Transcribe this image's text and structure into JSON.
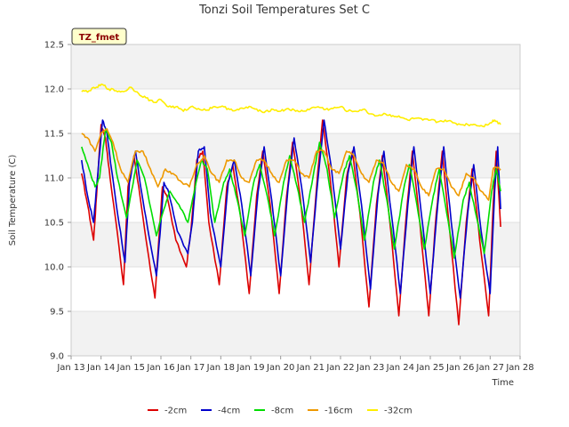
{
  "chart_data": {
    "type": "line",
    "title": "Tonzi Soil Temperatures Set C",
    "xlabel": "Time",
    "ylabel": "Soil Temperature (C)",
    "ylim": [
      9.0,
      12.5
    ],
    "xlim": [
      13,
      28
    ],
    "y_ticks": [
      "9.0",
      "9.5",
      "10.0",
      "10.5",
      "11.0",
      "11.5",
      "12.0",
      "12.5"
    ],
    "x_ticks": [
      "Jan 13",
      "Jan 14",
      "Jan 15",
      "Jan 16",
      "Jan 17",
      "Jan 18",
      "Jan 19",
      "Jan 20",
      "Jan 21",
      "Jan 22",
      "Jan 23",
      "Jan 24",
      "Jan 25",
      "Jan 26",
      "Jan 27",
      "Jan 28"
    ],
    "annotation": "TZ_fmet",
    "grid": true,
    "legend_position": "bottom",
    "series": [
      {
        "name": "-2cm",
        "color": "#dd0000",
        "x": [
          13.35,
          13.55,
          13.75,
          13.85,
          14.0,
          14.15,
          14.3,
          14.5,
          14.75,
          14.9,
          15.1,
          15.3,
          15.55,
          15.8,
          15.95,
          16.05,
          16.2,
          16.5,
          16.85,
          17.0,
          17.2,
          17.4,
          17.6,
          17.95,
          18.2,
          18.4,
          18.65,
          18.95,
          19.2,
          19.4,
          19.65,
          19.95,
          20.2,
          20.4,
          20.65,
          20.95,
          21.2,
          21.4,
          21.65,
          21.95,
          22.2,
          22.4,
          22.65,
          22.95,
          23.2,
          23.4,
          23.65,
          23.95,
          24.2,
          24.4,
          24.65,
          24.95,
          25.2,
          25.4,
          25.65,
          25.95,
          26.2,
          26.4,
          26.65,
          26.95,
          27.1,
          27.2,
          27.35
        ],
        "values": [
          11.05,
          10.7,
          10.3,
          10.8,
          11.6,
          11.45,
          11.0,
          10.5,
          9.8,
          10.9,
          11.25,
          10.8,
          10.2,
          9.65,
          10.4,
          10.9,
          10.8,
          10.3,
          10.0,
          10.4,
          11.2,
          11.3,
          10.5,
          9.8,
          10.9,
          11.15,
          10.6,
          9.7,
          10.8,
          11.3,
          10.7,
          9.7,
          10.8,
          11.4,
          10.8,
          9.8,
          10.9,
          11.65,
          11.0,
          10.0,
          11.0,
          11.3,
          10.6,
          9.55,
          10.7,
          11.25,
          10.5,
          9.45,
          10.6,
          11.3,
          10.5,
          9.45,
          10.6,
          11.3,
          10.4,
          9.35,
          10.5,
          11.1,
          10.3,
          9.45,
          10.7,
          11.3,
          10.45
        ]
      },
      {
        "name": "-4cm",
        "color": "#0000cc",
        "x": [
          13.35,
          13.55,
          13.75,
          13.85,
          14.05,
          14.2,
          14.35,
          14.55,
          14.8,
          14.95,
          15.15,
          15.35,
          15.6,
          15.85,
          16.0,
          16.1,
          16.25,
          16.55,
          16.9,
          17.05,
          17.25,
          17.45,
          17.65,
          18.0,
          18.25,
          18.45,
          18.7,
          19.0,
          19.25,
          19.45,
          19.7,
          20.0,
          20.25,
          20.45,
          20.7,
          21.0,
          21.25,
          21.45,
          21.7,
          22.0,
          22.25,
          22.45,
          22.7,
          23.0,
          23.25,
          23.45,
          23.7,
          24.0,
          24.25,
          24.45,
          24.7,
          25.0,
          25.25,
          25.45,
          25.7,
          26.0,
          26.25,
          26.45,
          26.7,
          27.0,
          27.15,
          27.25,
          27.35
        ],
        "values": [
          11.2,
          10.8,
          10.5,
          10.9,
          11.65,
          11.5,
          11.1,
          10.6,
          10.05,
          10.95,
          11.3,
          10.85,
          10.35,
          9.9,
          10.5,
          10.95,
          10.85,
          10.4,
          10.15,
          10.5,
          11.3,
          11.35,
          10.6,
          10.0,
          10.95,
          11.2,
          10.7,
          9.9,
          10.85,
          11.35,
          10.75,
          9.9,
          10.9,
          11.45,
          10.9,
          10.05,
          11.0,
          11.65,
          11.1,
          10.2,
          11.05,
          11.35,
          10.7,
          9.75,
          10.8,
          11.3,
          10.6,
          9.7,
          10.7,
          11.35,
          10.6,
          9.7,
          10.7,
          11.35,
          10.5,
          9.65,
          10.6,
          11.15,
          10.4,
          9.7,
          10.85,
          11.35,
          10.65
        ]
      },
      {
        "name": "-8cm",
        "color": "#00dd00",
        "x": [
          13.35,
          13.6,
          13.8,
          13.95,
          14.15,
          14.35,
          14.55,
          14.85,
          15.05,
          15.2,
          15.45,
          15.85,
          16.1,
          16.3,
          16.6,
          16.9,
          17.05,
          17.35,
          17.55,
          17.8,
          18.1,
          18.3,
          18.55,
          18.8,
          19.1,
          19.3,
          19.55,
          19.8,
          20.1,
          20.3,
          20.55,
          20.8,
          21.1,
          21.3,
          21.55,
          21.8,
          22.1,
          22.3,
          22.55,
          22.8,
          23.1,
          23.3,
          23.55,
          23.8,
          24.1,
          24.3,
          24.55,
          24.8,
          25.1,
          25.3,
          25.55,
          25.8,
          26.1,
          26.3,
          26.55,
          26.8,
          27.05,
          27.2,
          27.35
        ],
        "values": [
          11.35,
          11.1,
          10.9,
          11.0,
          11.55,
          11.4,
          11.0,
          10.55,
          10.9,
          11.2,
          11.0,
          10.35,
          10.65,
          10.85,
          10.7,
          10.5,
          10.75,
          11.2,
          11.1,
          10.5,
          10.95,
          11.1,
          10.75,
          10.35,
          10.95,
          11.15,
          10.8,
          10.35,
          10.95,
          11.25,
          10.9,
          10.5,
          11.05,
          11.4,
          11.1,
          10.55,
          11.05,
          11.25,
          10.85,
          10.3,
          10.95,
          11.2,
          10.75,
          10.2,
          10.85,
          11.15,
          10.7,
          10.2,
          10.8,
          11.1,
          10.6,
          10.1,
          10.75,
          10.95,
          10.55,
          10.15,
          10.85,
          11.1,
          10.85
        ]
      },
      {
        "name": "-16cm",
        "color": "#ee9900",
        "x": [
          13.35,
          13.55,
          13.8,
          14.0,
          14.2,
          14.4,
          14.65,
          14.9,
          15.15,
          15.4,
          15.65,
          15.9,
          16.15,
          16.4,
          16.7,
          16.95,
          17.2,
          17.45,
          17.7,
          17.95,
          18.2,
          18.45,
          18.7,
          18.95,
          19.2,
          19.45,
          19.7,
          19.95,
          20.2,
          20.45,
          20.7,
          20.95,
          21.2,
          21.45,
          21.7,
          21.95,
          22.2,
          22.45,
          22.7,
          22.95,
          23.2,
          23.45,
          23.7,
          23.95,
          24.2,
          24.45,
          24.7,
          24.95,
          25.2,
          25.45,
          25.7,
          25.95,
          26.2,
          26.45,
          26.7,
          26.95,
          27.1,
          27.2,
          27.35
        ],
        "values": [
          11.5,
          11.45,
          11.3,
          11.5,
          11.55,
          11.4,
          11.1,
          10.95,
          11.3,
          11.3,
          11.1,
          10.9,
          11.1,
          11.05,
          10.95,
          10.9,
          11.15,
          11.25,
          11.05,
          10.95,
          11.2,
          11.2,
          11.0,
          10.95,
          11.2,
          11.2,
          11.05,
          10.95,
          11.2,
          11.2,
          11.05,
          11.0,
          11.3,
          11.3,
          11.1,
          11.05,
          11.3,
          11.25,
          11.05,
          10.95,
          11.2,
          11.15,
          10.95,
          10.85,
          11.15,
          11.1,
          10.9,
          10.8,
          11.1,
          11.1,
          10.9,
          10.8,
          11.05,
          11.0,
          10.85,
          10.75,
          11.1,
          11.12,
          11.1
        ]
      },
      {
        "name": "-32cm",
        "color": "#ffee00",
        "x": [
          13.35,
          13.6,
          13.85,
          14.05,
          14.25,
          14.5,
          14.75,
          15.0,
          15.25,
          15.5,
          15.75,
          16.0,
          16.25,
          16.5,
          16.75,
          17.0,
          17.25,
          17.5,
          17.75,
          18.0,
          18.25,
          18.5,
          18.75,
          19.0,
          19.25,
          19.5,
          19.75,
          20.0,
          20.25,
          20.5,
          20.75,
          21.0,
          21.25,
          21.5,
          21.75,
          22.0,
          22.25,
          22.5,
          22.75,
          23.0,
          23.25,
          23.5,
          23.75,
          24.0,
          24.25,
          24.5,
          24.75,
          25.0,
          25.25,
          25.5,
          25.75,
          26.0,
          26.25,
          26.5,
          26.75,
          27.0,
          27.15,
          27.35
        ],
        "values": [
          11.97,
          11.98,
          12.02,
          12.05,
          12.0,
          11.98,
          11.97,
          12.02,
          11.95,
          11.9,
          11.85,
          11.88,
          11.8,
          11.8,
          11.75,
          11.8,
          11.78,
          11.76,
          11.8,
          11.8,
          11.78,
          11.76,
          11.78,
          11.8,
          11.75,
          11.75,
          11.77,
          11.75,
          11.78,
          11.75,
          11.75,
          11.78,
          11.8,
          11.77,
          11.78,
          11.8,
          11.75,
          11.75,
          11.77,
          11.72,
          11.7,
          11.72,
          11.7,
          11.68,
          11.65,
          11.67,
          11.65,
          11.65,
          11.63,
          11.65,
          11.62,
          11.6,
          11.6,
          11.6,
          11.58,
          11.62,
          11.65,
          11.6
        ]
      }
    ]
  }
}
